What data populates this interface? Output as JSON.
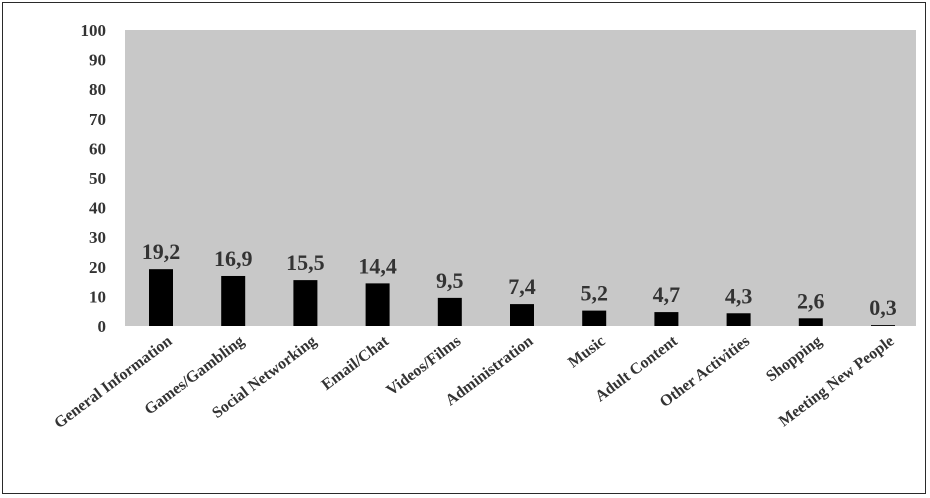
{
  "chart_data": {
    "type": "bar",
    "categories": [
      "General Information",
      "Games/Gambling",
      "Social Networking",
      "Email/Chat",
      "Videos/Films",
      "Administration",
      "Music",
      "Adult Content",
      "Other Activities",
      "Shopping",
      "Meeting New People"
    ],
    "values": [
      19.2,
      16.9,
      15.5,
      14.4,
      9.5,
      7.4,
      5.2,
      4.7,
      4.3,
      2.6,
      0.3
    ],
    "data_labels": [
      "19,2",
      "16,9",
      "15,5",
      "14,4",
      "9,5",
      "7,4",
      "5,2",
      "4,7",
      "4,3",
      "2,6",
      "0,3"
    ],
    "yticks": [
      "0",
      "10",
      "20",
      "30",
      "40",
      "50",
      "60",
      "70",
      "80",
      "90",
      "100"
    ],
    "ylim": [
      0,
      100
    ],
    "title": "",
    "xlabel": "",
    "ylabel": "",
    "grid": false,
    "legend": "none",
    "colors": {
      "plot_background": "#c8c8c8",
      "bar": "#000000",
      "text": "#333333"
    }
  }
}
